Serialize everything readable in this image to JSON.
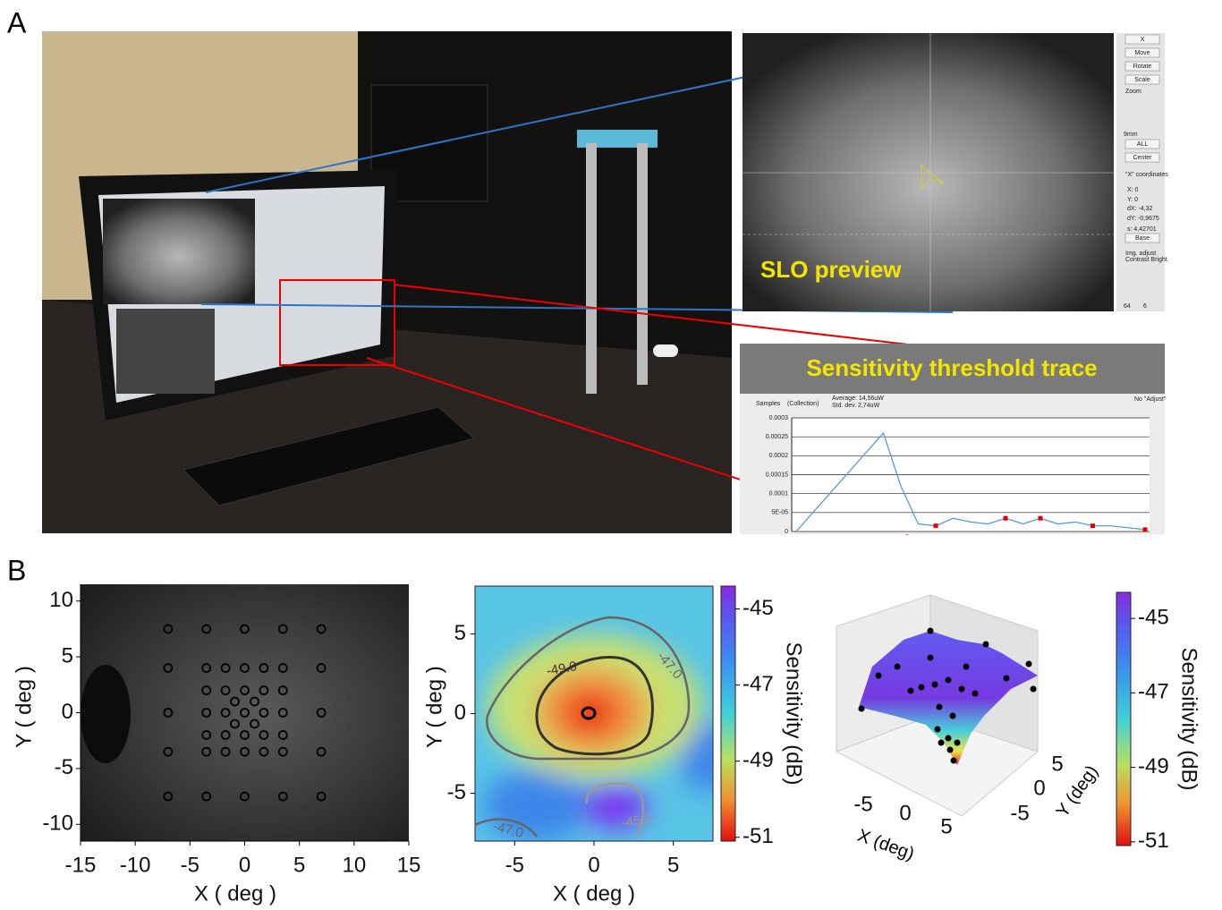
{
  "panel_a": {
    "label": "A",
    "slo_label": "SLO preview",
    "slo_buttons": [
      "X",
      "Move",
      "Rotate",
      "Scale",
      "ALL",
      "Center",
      "Base"
    ],
    "slo_texts": [
      "Zoom",
      "9mm",
      "\"X\" coordinates",
      "X:  0",
      "Y:  0",
      "dX: -4,32",
      "dY: -0,9675",
      "s:  4,42701",
      "Img. adjust",
      "Contrast  Bright.",
      "64",
      "6"
    ],
    "trace_title": "Sensitivity threshold trace",
    "trace_header": [
      "Samples",
      "(Collection)",
      "Average:  14,56uW",
      "Std. dev.  2,74uW",
      "No \"Adjust\""
    ],
    "trace": {
      "type": "line",
      "ylim": [
        0,
        0.0003
      ],
      "yticks": [
        0,
        {
          "value": 5e-05,
          "label": "5E-05"
        },
        0.0001,
        0.00015,
        0.0002,
        0.00025,
        0.0003
      ],
      "grid": true,
      "series": [
        {
          "color": "#5b9bd5",
          "values": [
            0,
            5.2e-05,
            0.000104,
            0.000156,
            0.000208,
            0.00026,
            0.00012,
            2e-05,
            1.5e-05,
            3.5e-05,
            2.5e-05,
            2e-05,
            3.5e-05,
            2e-05,
            3.5e-05,
            2e-05,
            2.5e-05,
            1.5e-05,
            1.5e-05,
            1e-05,
            5e-06
          ]
        },
        {
          "color": "#e00000",
          "marker": "square",
          "values": [
            null,
            null,
            null,
            null,
            null,
            null,
            null,
            null,
            1.5e-05,
            null,
            null,
            null,
            3.5e-05,
            null,
            3.5e-05,
            null,
            null,
            1.5e-05,
            null,
            null,
            5e-06
          ]
        }
      ]
    }
  },
  "panel_b": {
    "label": "B",
    "charts": [
      {
        "type": "scatter",
        "marker": "circle-open",
        "color": "#000000",
        "xlabel": "X ( deg )",
        "ylabel": "Y ( deg )",
        "xlim": [
          -15,
          15
        ],
        "ylim": [
          -11.5,
          11.5
        ],
        "xticks": [
          -15,
          -10,
          -5,
          0,
          5,
          10,
          15
        ],
        "yticks": [
          -10,
          -5,
          0,
          5,
          10
        ],
        "x": [
          -7,
          -3.5,
          0,
          3.5,
          7,
          -7,
          -3.5,
          -1.75,
          0,
          1.75,
          3.5,
          7,
          -3.5,
          -1.75,
          0,
          1.75,
          3.5,
          -0.9,
          0.9,
          -7,
          -3.5,
          -1.75,
          0,
          1.75,
          3.5,
          7,
          -0.9,
          0.9,
          -3.5,
          -1.75,
          0,
          1.75,
          3.5,
          -7,
          -3.5,
          -1.75,
          0,
          1.75,
          3.5,
          7,
          -7,
          -3.5,
          0,
          3.5,
          7
        ],
        "y": [
          7.5,
          7.5,
          7.5,
          7.5,
          7.5,
          4,
          4,
          4,
          4,
          4,
          4,
          4,
          2,
          2,
          2,
          2,
          2,
          1,
          1,
          0,
          0,
          0,
          0,
          0,
          0,
          0,
          -1,
          -1,
          -2,
          -2,
          -2,
          -2,
          -2,
          -3.5,
          -3.5,
          -3.5,
          -3.5,
          -3.5,
          -3.5,
          -3.5,
          -7.5,
          -7.5,
          -7.5,
          -7.5,
          -7.5
        ]
      },
      {
        "type": "contour",
        "xlabel": "X ( deg )",
        "ylabel": "Y ( deg )",
        "xlim": [
          -7.5,
          7.5
        ],
        "ylim": [
          -8,
          8
        ],
        "xticks": [
          -5,
          0,
          5
        ],
        "yticks": [
          -5,
          0,
          5
        ],
        "contour_labels": [
          {
            "value": -49,
            "label": "-49.0"
          },
          {
            "value": -47,
            "label": "-47.0"
          },
          {
            "value": -45,
            "label": "-45.0"
          },
          {
            "value": -47,
            "label": "-47.0"
          }
        ],
        "colorbar": {
          "label": "Sensitivity (dB)",
          "lim": [
            -51.1,
            -44.4
          ],
          "ticks": [
            -45,
            -47,
            -49,
            -51
          ]
        }
      },
      {
        "type": "surface3d",
        "xlabel": "X (deg)",
        "ylabel": "Y (deg)",
        "xticks": [
          -5,
          0,
          5
        ],
        "yticks": [
          5,
          0,
          -5
        ],
        "colorbar": {
          "label": "Sensitivity (dB)",
          "lim": [
            -51.1,
            -44.3
          ],
          "ticks": [
            -45,
            -47,
            -49,
            -51
          ]
        }
      }
    ]
  }
}
